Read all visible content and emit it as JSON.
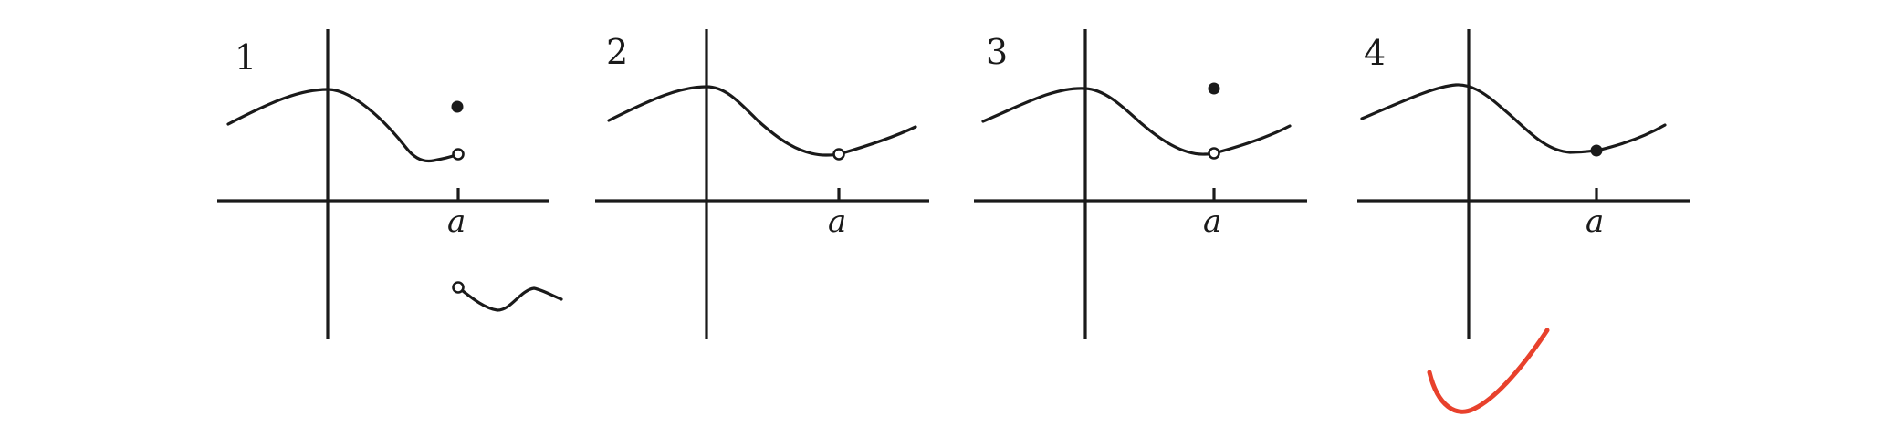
{
  "panels": [
    {
      "number": "1",
      "tick_label": "a"
    },
    {
      "number": "2",
      "tick_label": "a"
    },
    {
      "number": "3",
      "tick_label": "a"
    },
    {
      "number": "4",
      "tick_label": "a"
    }
  ],
  "colors": {
    "ink": "#1a1a1a",
    "checkmark": "#e8412c",
    "background": "#ffffff"
  }
}
